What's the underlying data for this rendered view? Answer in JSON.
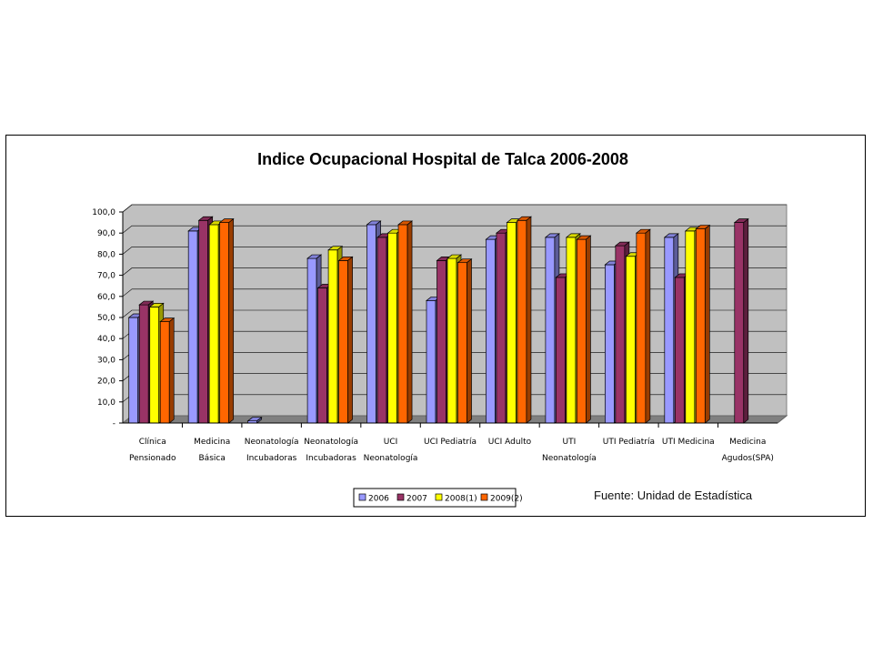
{
  "chart_data": {
    "type": "bar",
    "title": "Indice Ocupacional Hospital de Talca 2006-2008",
    "source_note": "Fuente: Unidad de Estadística",
    "ylim": [
      0,
      100
    ],
    "yticks": [
      "-",
      "10,0",
      "20,0",
      "30,0",
      "40,0",
      "50,0",
      "60,0",
      "70,0",
      "80,0",
      "90,0",
      "100,0"
    ],
    "grid": true,
    "legend_position": "bottom",
    "categories": [
      [
        "Clínica",
        "Pensionado"
      ],
      [
        "Medicina",
        "Básica"
      ],
      [
        "Neonatología",
        "Incubadoras"
      ],
      [
        "Neonatología",
        "Incubadoras"
      ],
      [
        "UCI",
        "Neonatología"
      ],
      [
        "UCI Pediatría",
        ""
      ],
      [
        "UCI Adulto",
        ""
      ],
      [
        "UTI",
        "Neonatología"
      ],
      [
        "UTI Pediatría",
        ""
      ],
      [
        "UTI Medicina",
        ""
      ],
      [
        "Medicina",
        "Agudos(SPA)"
      ]
    ],
    "series": [
      {
        "name": "2006",
        "color": "#9999FF",
        "values": [
          50,
          91,
          1,
          78,
          94,
          58,
          87,
          88,
          75,
          88,
          null
        ]
      },
      {
        "name": "2007",
        "color": "#993366",
        "values": [
          56,
          96,
          null,
          64,
          88,
          77,
          90,
          69,
          84,
          69,
          95
        ]
      },
      {
        "name": "2008(1)",
        "color": "#FFFF00",
        "values": [
          55,
          94,
          null,
          82,
          90,
          78,
          95,
          88,
          79,
          91,
          null
        ]
      },
      {
        "name": "2009(2)",
        "color": "#FF6600",
        "values": [
          48,
          95,
          null,
          77,
          94,
          76,
          96,
          87,
          90,
          92,
          null
        ]
      }
    ]
  }
}
